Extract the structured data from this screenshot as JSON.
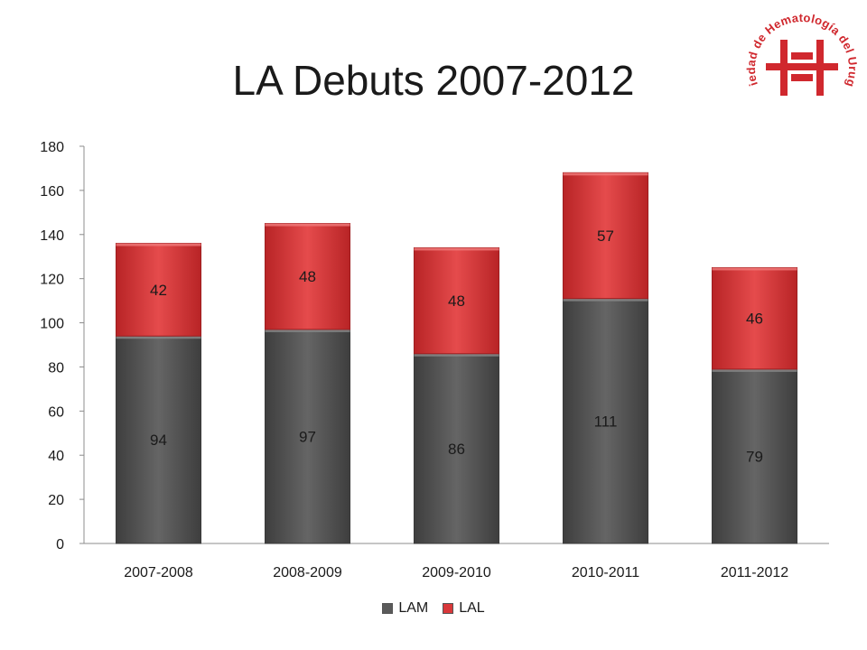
{
  "slide": {
    "title": "LA Debuts 2007-2012"
  },
  "logo": {
    "text": "Sociedad de Hematología del Uruguay",
    "color": "#d0282e"
  },
  "chart_data": {
    "type": "bar",
    "stacked": true,
    "categories": [
      "2007-2008",
      "2008-2009",
      "2009-2010",
      "2010-2011",
      "2011-2012"
    ],
    "series": [
      {
        "name": "LAM",
        "values": [
          94,
          97,
          86,
          111,
          79
        ],
        "color": "#5a5a5a"
      },
      {
        "name": "LAL",
        "values": [
          42,
          48,
          48,
          57,
          46
        ],
        "color": "#d9383a"
      }
    ],
    "ylim": [
      0,
      180
    ],
    "yticks": [
      0,
      20,
      40,
      60,
      80,
      100,
      120,
      140,
      160,
      180
    ],
    "grid": false,
    "legend": "bottom",
    "data_labels": true
  }
}
